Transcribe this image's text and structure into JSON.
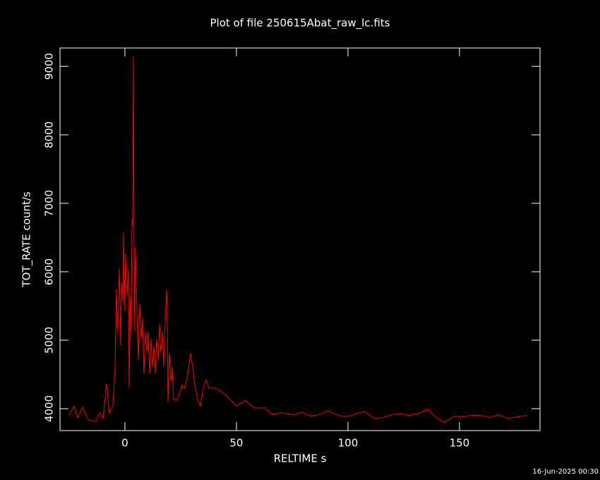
{
  "chart_data": {
    "type": "line",
    "title": "Plot of file 250615Abat_raw_lc.fits",
    "x_label": "RELTIME  s",
    "y_label": "TOT_RATE  count/s",
    "timestamp": "16-Jun-2025 00:30",
    "xlim": [
      -29.1,
      186.1
    ],
    "ylim": [
      3680,
      9268
    ],
    "xticks": [
      0,
      50,
      100,
      150
    ],
    "yticks": [
      4000,
      5000,
      6000,
      7000,
      8000,
      9000
    ],
    "x": [
      -25.3,
      -22.8,
      -21.2,
      -19,
      -16.5,
      -13,
      -11.4,
      -9.8,
      -8.2,
      -7,
      -5.4,
      -4.4,
      -3.8,
      -3.2,
      -2.5,
      -1.9,
      -1.6,
      -0.9,
      -0.6,
      0,
      0.3,
      0.9,
      1.6,
      1.9,
      2.5,
      2.8,
      3.2,
      3.5,
      3.8,
      4.1,
      4.4,
      4.7,
      5.4,
      6,
      6.6,
      7.3,
      7.9,
      8.5,
      9.2,
      9.8,
      10.4,
      11.1,
      11.7,
      12.3,
      13,
      13.6,
      14.2,
      14.9,
      15.5,
      16.1,
      16.8,
      17.4,
      18,
      18.7,
      19,
      19.3,
      19.9,
      20.6,
      21.2,
      21.8,
      23.1,
      24.4,
      25.6,
      26.9,
      28.2,
      29.4,
      30.4,
      31.3,
      32.6,
      33.9,
      35.1,
      36.4,
      37.7,
      40.8,
      45.3,
      50,
      54.1,
      57.9,
      62.7,
      65.8,
      70.6,
      75.3,
      79.4,
      83.2,
      87,
      91.1,
      95.2,
      99.1,
      103.2,
      107.3,
      111.7,
      115.8,
      119.6,
      123.7,
      127.5,
      131.6,
      135.8,
      139.6,
      143.4,
      147.5,
      151.6,
      155.4,
      159.5,
      163.3,
      167.4,
      171.8,
      175.9,
      180.4
    ],
    "series": [
      {
        "name": "TOT_RATE",
        "color": "#ff0000",
        "values": [
          3887,
          4040,
          3866,
          4020,
          3835,
          3815,
          3938,
          3856,
          4370,
          3938,
          4040,
          4610,
          5740,
          5120,
          6050,
          4920,
          5850,
          5540,
          6570,
          5430,
          6260,
          5640,
          6050,
          4300,
          5640,
          5120,
          6770,
          6670,
          9140,
          6360,
          5120,
          6360,
          5430,
          4710,
          5540,
          5020,
          5330,
          4510,
          5120,
          4810,
          5120,
          4510,
          5020,
          4610,
          4920,
          4510,
          5020,
          4710,
          5230,
          4810,
          5120,
          4610,
          5230,
          5740,
          5430,
          4090,
          4810,
          4400,
          4610,
          4140,
          4120,
          4200,
          4350,
          4300,
          4510,
          4810,
          4610,
          4350,
          4140,
          4040,
          4300,
          4420,
          4300,
          4300,
          4200,
          4040,
          4120,
          4010,
          4010,
          3920,
          3940,
          3910,
          3950,
          3890,
          3910,
          3970,
          3910,
          3880,
          3920,
          3960,
          3860,
          3870,
          3910,
          3930,
          3900,
          3930,
          3990,
          3870,
          3800,
          3890,
          3880,
          3900,
          3900,
          3870,
          3910,
          3860,
          3880,
          3900
        ]
      }
    ]
  }
}
